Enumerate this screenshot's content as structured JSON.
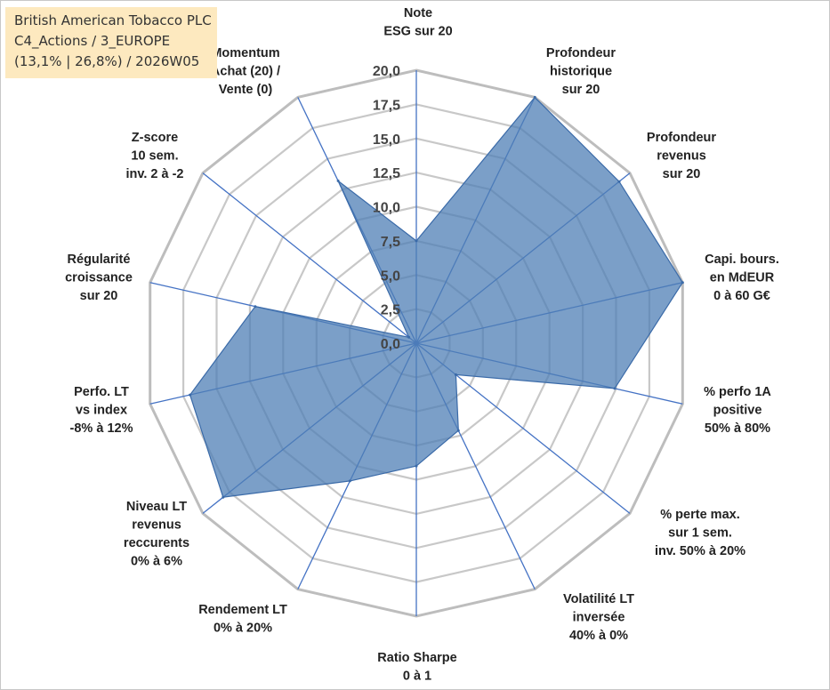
{
  "header": {
    "line1": "British American Tobacco PLC",
    "line2": "C4_Actions / 3_EUROPE",
    "line3": "(13,1% | 26,8%) / 2026W05"
  },
  "colors": {
    "fill": "#4f7fb5",
    "stroke": "#3a6aa8",
    "spoke": "#4472c4",
    "ring": "#c8c8c8",
    "ring_outer": "#bdbdbd"
  },
  "chart_data": {
    "type": "radar",
    "title": "British American Tobacco PLC",
    "rlim": [
      0,
      20
    ],
    "ticks": [
      "0,0",
      "2,5",
      "5,0",
      "7,5",
      "10,0",
      "12,5",
      "15,0",
      "17,5",
      "20,0"
    ],
    "ring_count": 8,
    "categories": [
      [
        "Note",
        "ESG sur 20"
      ],
      [
        "Profondeur",
        "historique",
        "sur 20"
      ],
      [
        "Profondeur",
        "revenus",
        "sur 20"
      ],
      [
        "Capi. bours.",
        "en MdEUR",
        "0 à 60 G€"
      ],
      [
        "% perfo 1A",
        "positive",
        "50% à 80%"
      ],
      [
        "% perte max.",
        "sur 1 sem.",
        "inv. 50% à 20%"
      ],
      [
        "Volatilité LT",
        "inversée",
        "40% à 0%"
      ],
      [
        "Ratio Sharpe",
        "0 à 1"
      ],
      [
        "Rendement LT",
        "0% à 20%"
      ],
      [
        "Niveau LT",
        "revenus",
        "reccurents",
        "0% à 6%"
      ],
      [
        "Perfo. LT",
        "vs index",
        "-8% à 12%"
      ],
      [
        "Régularité",
        "croissance",
        "sur 20"
      ],
      [
        "Z-score",
        "10 sem.",
        "inv. 2 à -2"
      ],
      [
        "Momentum",
        "Achat (20) /",
        "Vente (0)"
      ]
    ],
    "series": [
      {
        "name": "British American Tobacco PLC",
        "values": [
          7.5,
          20.0,
          19.0,
          20.0,
          14.9,
          3.7,
          7.1,
          9.0,
          11.2,
          18.1,
          17.0,
          12.1,
          0.7,
          13.2
        ]
      }
    ]
  }
}
